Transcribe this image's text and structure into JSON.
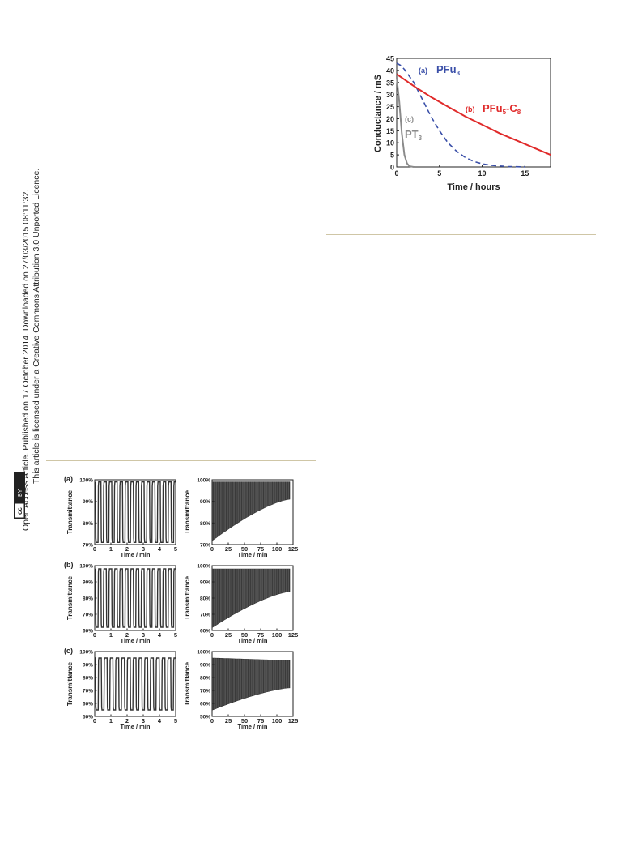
{
  "sidebar": {
    "line1": "Open Access Article. Published on 17 October 2014. Downloaded on 27/03/2015 08:11:32.",
    "line2": "This article is licensed under a Creative Commons Attribution 3.0 Unported Licence.",
    "cc_badge": "cc",
    "by_badge": "BY"
  },
  "chart_data": [
    {
      "type": "line",
      "xlabel": "Time / hours",
      "ylabel": "Conductance / mS",
      "xlim": [
        0,
        18
      ],
      "ylim": [
        0,
        45
      ],
      "xticks": [
        0,
        5,
        10,
        15
      ],
      "yticks": [
        0,
        5,
        10,
        15,
        20,
        25,
        30,
        35,
        40,
        45
      ],
      "series": [
        {
          "name": "PFu3",
          "label_letter": "(a)",
          "label_main": "PFu",
          "label_sub": "3",
          "color": "#3a4fa8",
          "style": "dashed",
          "x": [
            0,
            0.5,
            1,
            2,
            3,
            4,
            5,
            6,
            7,
            8,
            9,
            10,
            11,
            12,
            13,
            14,
            15
          ],
          "y": [
            43,
            42,
            40,
            35,
            28,
            21,
            15,
            10,
            6.5,
            4,
            2.3,
            1.3,
            0.7,
            0.4,
            0.2,
            0.1,
            0.05
          ]
        },
        {
          "name": "PFu5-C8",
          "label_letter": "(b)",
          "label_main": "PFu",
          "label_sub": "5",
          "label_tail": "-C",
          "label_sub2": "8",
          "color": "#e02a2a",
          "style": "solid",
          "x": [
            0,
            2,
            4,
            6,
            8,
            10,
            12,
            14,
            16,
            18
          ],
          "y": [
            38.5,
            33.5,
            29,
            25,
            21,
            17.5,
            14,
            11,
            8,
            5
          ]
        },
        {
          "name": "PT3",
          "label_letter": "(c)",
          "label_main": "PT",
          "label_sub": "3",
          "color": "#8a8a8a",
          "style": "solid",
          "x": [
            0,
            0.3,
            0.6,
            0.9,
            1.2,
            1.5,
            2
          ],
          "y": [
            37,
            27,
            14,
            5,
            1.5,
            0.3,
            0
          ]
        }
      ]
    },
    {
      "type": "line",
      "panels": [
        {
          "label": "(a)",
          "ylabel": "Transmittance",
          "xlabel": "Time / min",
          "ylim": [
            70,
            100
          ],
          "yticks": [
            "70%",
            "80%",
            "90%",
            "100%"
          ],
          "xlim": [
            0,
            5
          ],
          "xticks": [
            0,
            1,
            2,
            3,
            4,
            5
          ],
          "cycles": 15,
          "high": 99,
          "low": 71
        },
        {
          "label": "",
          "ylabel": "Transmittance",
          "xlabel": "Time / min",
          "ylim": [
            70,
            100
          ],
          "yticks": [
            "70%",
            "80%",
            "90%",
            "100%"
          ],
          "xlim": [
            0,
            125
          ],
          "xticks": [
            0,
            25,
            50,
            75,
            100,
            125
          ],
          "high": 99,
          "low_start": 72,
          "low_end": 91
        },
        {
          "label": "(b)",
          "ylabel": "Transmittance",
          "xlabel": "Time / min",
          "ylim": [
            60,
            100
          ],
          "yticks": [
            "60%",
            "70%",
            "80%",
            "90%",
            "100%"
          ],
          "xlim": [
            0,
            5
          ],
          "xticks": [
            0,
            1,
            2,
            3,
            4,
            5
          ],
          "cycles": 15,
          "high": 98,
          "low": 62
        },
        {
          "label": "",
          "ylabel": "Transmittance",
          "xlabel": "Time / min",
          "ylim": [
            60,
            100
          ],
          "yticks": [
            "60%",
            "70%",
            "80%",
            "90%",
            "100%"
          ],
          "xlim": [
            0,
            125
          ],
          "xticks": [
            0,
            25,
            50,
            75,
            100,
            125
          ],
          "high": 98,
          "low_start": 62,
          "low_end": 84
        },
        {
          "label": "(c)",
          "ylabel": "Transmittance",
          "xlabel": "Time / min",
          "ylim": [
            50,
            100
          ],
          "yticks": [
            "50%",
            "60%",
            "70%",
            "80%",
            "90%",
            "100%"
          ],
          "xlim": [
            0,
            5
          ],
          "xticks": [
            0,
            1,
            2,
            3,
            4,
            5
          ],
          "cycles": 14,
          "high": 95,
          "low": 55
        },
        {
          "label": "",
          "ylabel": "Transmittance",
          "xlabel": "Time / min",
          "ylim": [
            50,
            100
          ],
          "yticks": [
            "50%",
            "60%",
            "70%",
            "80%",
            "90%",
            "100%"
          ],
          "xlim": [
            0,
            125
          ],
          "xticks": [
            0,
            25,
            50,
            75,
            100,
            125
          ],
          "high_start": 95,
          "high_end": 93,
          "low_start": 55,
          "low_end": 72
        }
      ]
    }
  ]
}
